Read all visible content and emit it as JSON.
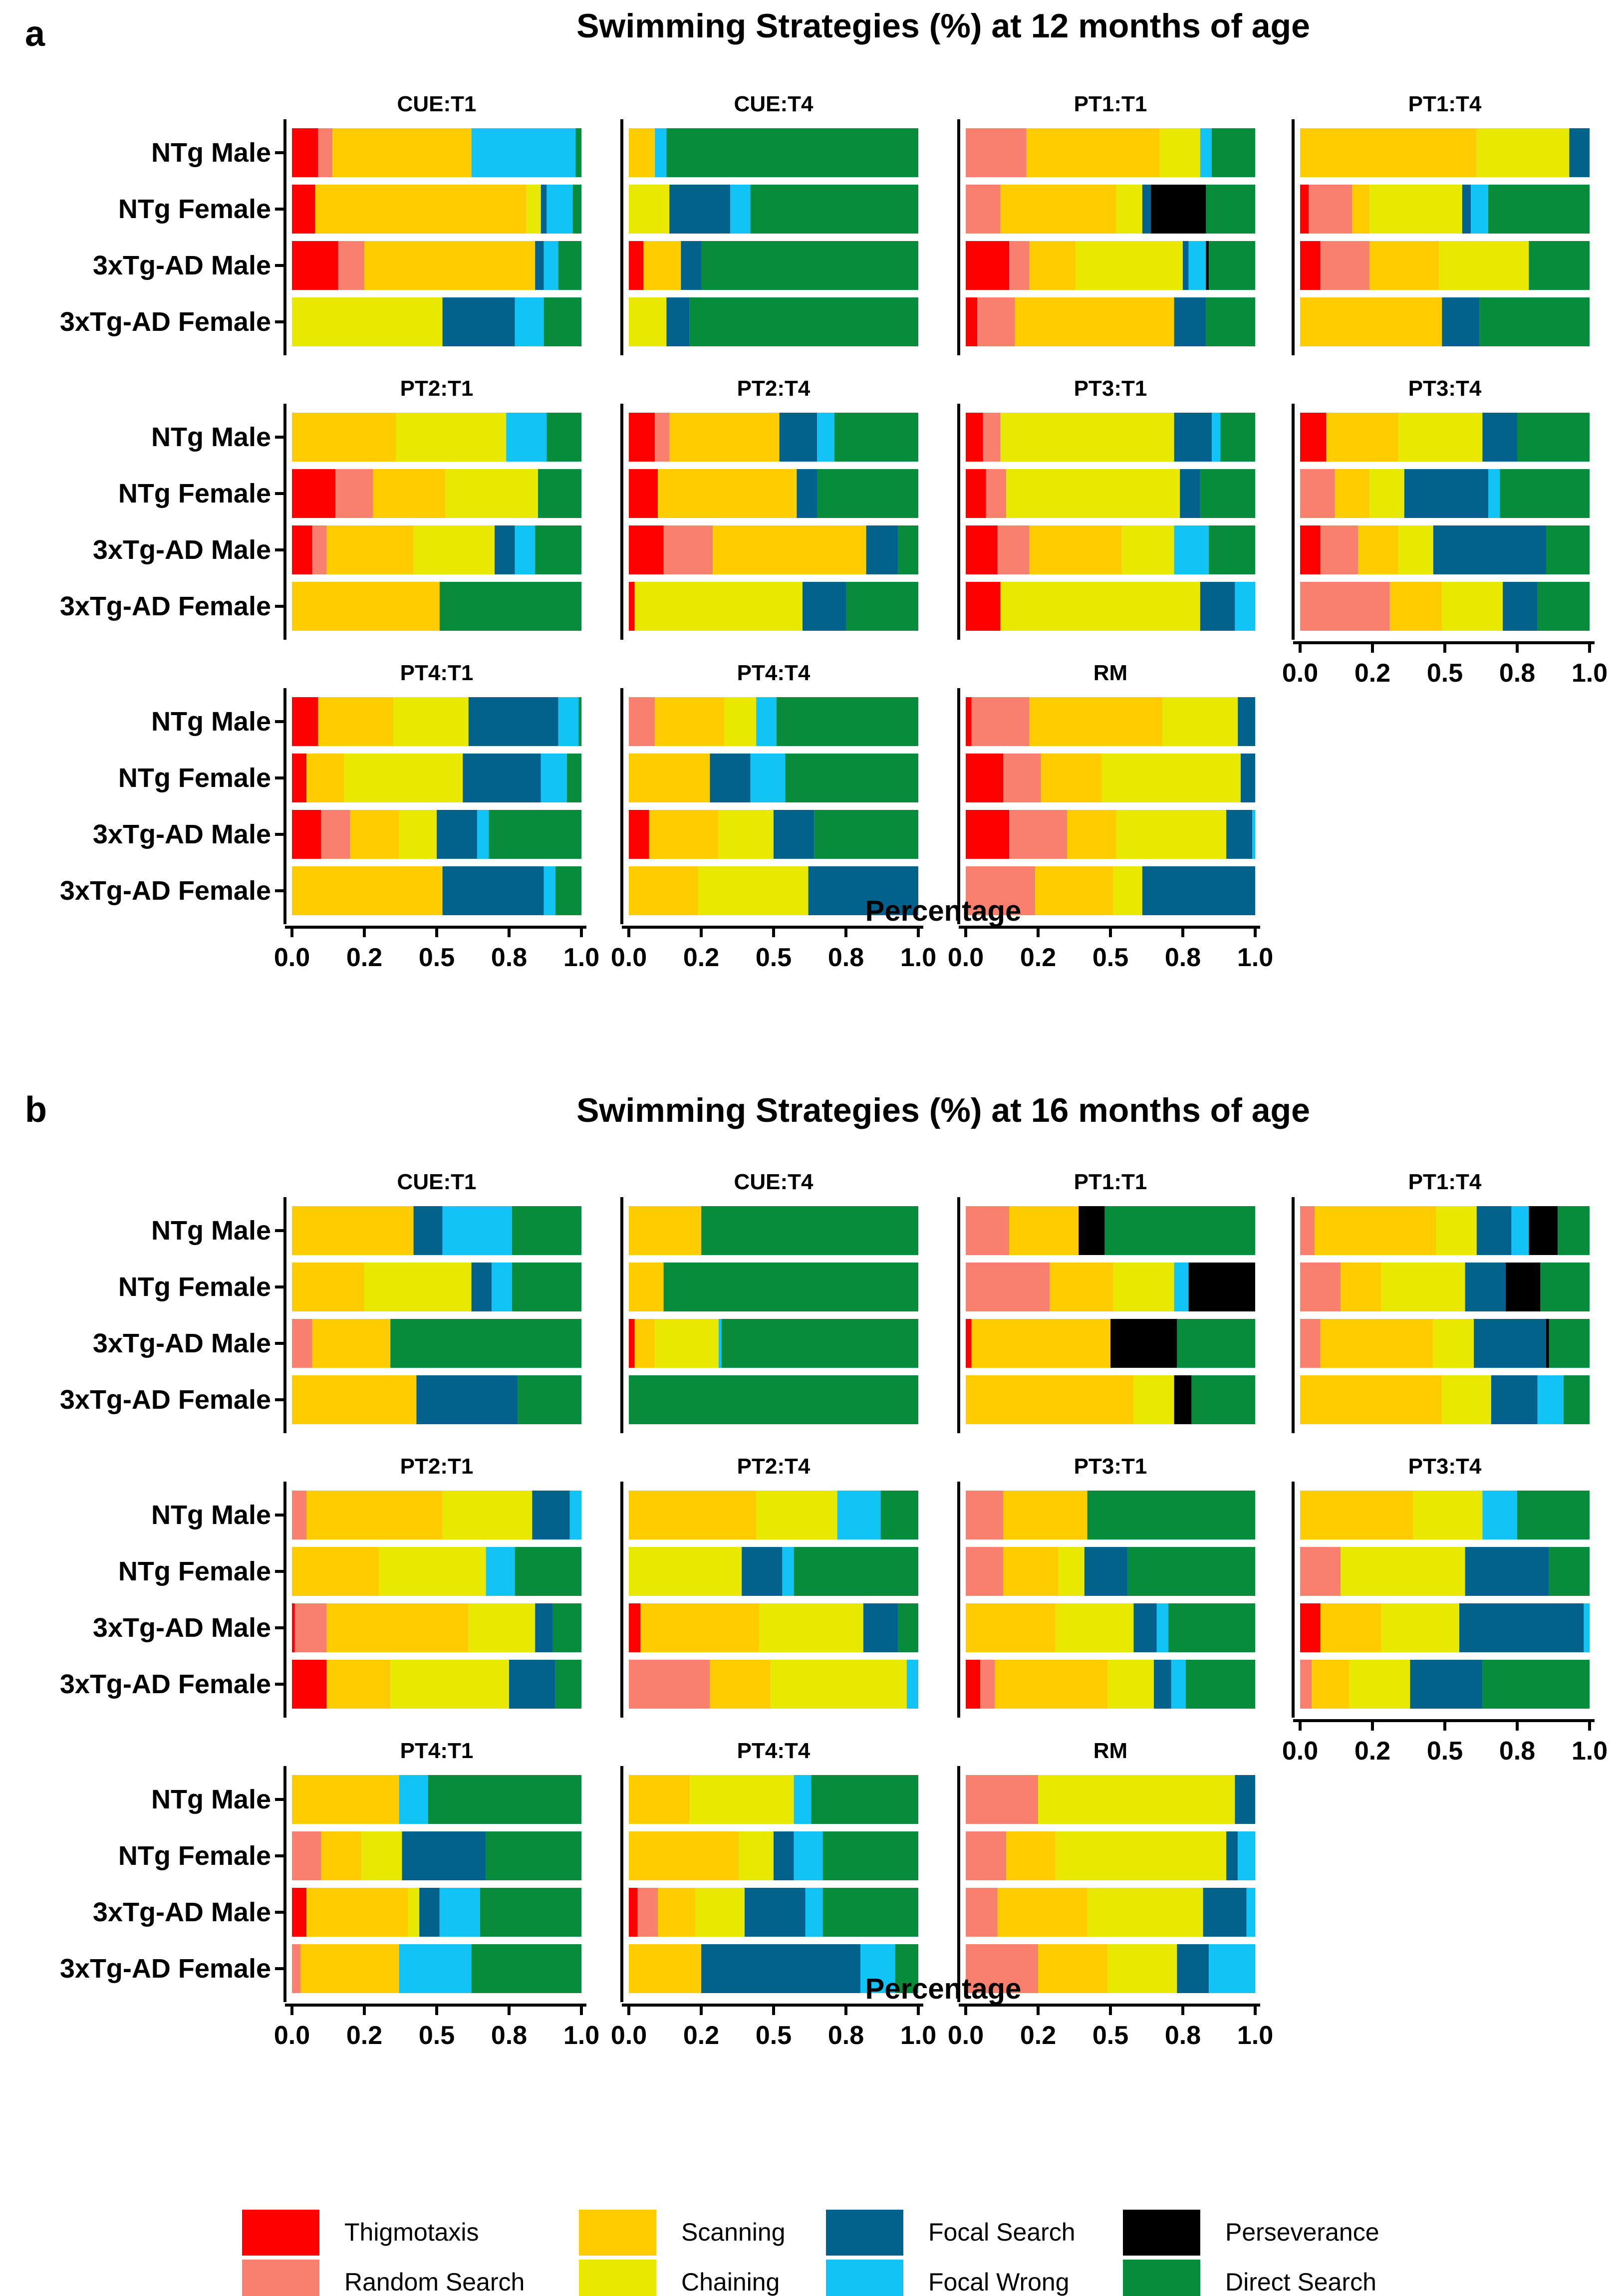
{
  "chart_data": [
    {
      "panel": "a",
      "type": "bar",
      "orientation": "horizontal",
      "stacked": true,
      "title": "Swimming Strategies (%) at 12 months of age",
      "xlabel": "Percentage",
      "xlim": [
        0,
        1
      ],
      "xtick_labels": [
        "0.0",
        "0.2",
        "0.5",
        "0.8",
        "1.0"
      ],
      "groups": [
        "NTg Male",
        "NTg Female",
        "3xTg-AD Male",
        "3xTg-AD Female"
      ],
      "facets": [
        {
          "title": "CUE:T1",
          "bars": [
            [
              0.09,
              0.05,
              0.48,
              0.0,
              0.0,
              0.36,
              0.0,
              0.02
            ],
            [
              0.08,
              0.0,
              0.73,
              0.05,
              0.02,
              0.09,
              0.0,
              0.03
            ],
            [
              0.16,
              0.09,
              0.59,
              0.0,
              0.03,
              0.05,
              0.0,
              0.08
            ],
            [
              0.0,
              0.0,
              0.0,
              0.52,
              0.25,
              0.1,
              0.0,
              0.13
            ]
          ]
        },
        {
          "title": "CUE:T4",
          "bars": [
            [
              0.0,
              0.0,
              0.09,
              0.0,
              0.0,
              0.04,
              0.0,
              0.87
            ],
            [
              0.0,
              0.0,
              0.0,
              0.14,
              0.21,
              0.07,
              0.0,
              0.58
            ],
            [
              0.05,
              0.0,
              0.13,
              0.0,
              0.07,
              0.0,
              0.0,
              0.75
            ],
            [
              0.0,
              0.0,
              0.0,
              0.13,
              0.08,
              0.0,
              0.0,
              0.79
            ]
          ]
        },
        {
          "title": "PT1:T1",
          "bars": [
            [
              0.0,
              0.21,
              0.46,
              0.14,
              0.0,
              0.04,
              0.0,
              0.15
            ],
            [
              0.0,
              0.12,
              0.4,
              0.09,
              0.03,
              0.0,
              0.19,
              0.17
            ],
            [
              0.15,
              0.07,
              0.16,
              0.37,
              0.02,
              0.06,
              0.01,
              0.16
            ],
            [
              0.04,
              0.13,
              0.55,
              0.0,
              0.11,
              0.0,
              0.0,
              0.17
            ]
          ]
        },
        {
          "title": "PT1:T4",
          "bars": [
            [
              0.0,
              0.0,
              0.61,
              0.32,
              0.07,
              0.0,
              0.0,
              0.0
            ],
            [
              0.03,
              0.15,
              0.06,
              0.32,
              0.03,
              0.06,
              0.0,
              0.35
            ],
            [
              0.07,
              0.17,
              0.24,
              0.31,
              0.0,
              0.0,
              0.0,
              0.21
            ],
            [
              0.0,
              0.0,
              0.49,
              0.0,
              0.13,
              0.0,
              0.0,
              0.38
            ]
          ]
        },
        {
          "title": "PT2:T1",
          "bars": [
            [
              0.0,
              0.0,
              0.36,
              0.38,
              0.0,
              0.14,
              0.0,
              0.12
            ],
            [
              0.15,
              0.13,
              0.25,
              0.32,
              0.0,
              0.0,
              0.0,
              0.15
            ],
            [
              0.07,
              0.05,
              0.3,
              0.28,
              0.07,
              0.07,
              0.0,
              0.16
            ],
            [
              0.0,
              0.0,
              0.51,
              0.0,
              0.0,
              0.0,
              0.0,
              0.49
            ]
          ]
        },
        {
          "title": "PT2:T4",
          "bars": [
            [
              0.09,
              0.05,
              0.38,
              0.0,
              0.13,
              0.06,
              0.0,
              0.29
            ],
            [
              0.1,
              0.0,
              0.48,
              0.0,
              0.07,
              0.0,
              0.0,
              0.35
            ],
            [
              0.12,
              0.17,
              0.53,
              0.0,
              0.11,
              0.0,
              0.0,
              0.07
            ],
            [
              0.02,
              0.0,
              0.0,
              0.58,
              0.15,
              0.0,
              0.0,
              0.25
            ]
          ]
        },
        {
          "title": "PT3:T1",
          "bars": [
            [
              0.06,
              0.06,
              0.0,
              0.6,
              0.13,
              0.03,
              0.0,
              0.12
            ],
            [
              0.07,
              0.07,
              0.0,
              0.6,
              0.07,
              0.0,
              0.0,
              0.19
            ],
            [
              0.11,
              0.11,
              0.32,
              0.18,
              0.0,
              0.12,
              0.0,
              0.16
            ],
            [
              0.12,
              0.0,
              0.0,
              0.69,
              0.12,
              0.07,
              0.0,
              0.0
            ]
          ]
        },
        {
          "title": "PT3:T4",
          "bars": [
            [
              0.09,
              0.0,
              0.25,
              0.29,
              0.12,
              0.0,
              0.0,
              0.25
            ],
            [
              0.0,
              0.12,
              0.12,
              0.12,
              0.29,
              0.04,
              0.0,
              0.31
            ],
            [
              0.07,
              0.13,
              0.14,
              0.12,
              0.39,
              0.0,
              0.0,
              0.15
            ],
            [
              0.0,
              0.31,
              0.18,
              0.21,
              0.12,
              0.0,
              0.0,
              0.18
            ]
          ]
        },
        {
          "title": "PT4:T1",
          "bars": [
            [
              0.09,
              0.0,
              0.26,
              0.26,
              0.31,
              0.07,
              0.0,
              0.01
            ],
            [
              0.05,
              0.0,
              0.13,
              0.41,
              0.27,
              0.09,
              0.0,
              0.05
            ],
            [
              0.1,
              0.1,
              0.17,
              0.13,
              0.14,
              0.04,
              0.0,
              0.32
            ],
            [
              0.0,
              0.0,
              0.52,
              0.0,
              0.35,
              0.04,
              0.0,
              0.09
            ]
          ]
        },
        {
          "title": "PT4:T4",
          "bars": [
            [
              0.0,
              0.09,
              0.24,
              0.11,
              0.0,
              0.07,
              0.0,
              0.49
            ],
            [
              0.0,
              0.0,
              0.28,
              0.0,
              0.14,
              0.12,
              0.0,
              0.46
            ],
            [
              0.07,
              0.0,
              0.24,
              0.19,
              0.14,
              0.0,
              0.0,
              0.36
            ],
            [
              0.0,
              0.0,
              0.24,
              0.38,
              0.38,
              0.0,
              0.0,
              0.0
            ]
          ]
        },
        {
          "title": "RM",
          "bars": [
            [
              0.02,
              0.2,
              0.46,
              0.26,
              0.06,
              0.0,
              0.0,
              0.0
            ],
            [
              0.13,
              0.13,
              0.21,
              0.48,
              0.05,
              0.0,
              0.0,
              0.0
            ],
            [
              0.15,
              0.2,
              0.17,
              0.38,
              0.09,
              0.01,
              0.0,
              0.0
            ],
            [
              0.0,
              0.24,
              0.27,
              0.1,
              0.39,
              0.0,
              0.0,
              0.0
            ]
          ]
        }
      ]
    },
    {
      "panel": "b",
      "type": "bar",
      "orientation": "horizontal",
      "stacked": true,
      "title": "Swimming Strategies (%) at 16 months of age",
      "xlabel": "Percentage",
      "xlim": [
        0,
        1
      ],
      "xtick_labels": [
        "0.0",
        "0.2",
        "0.5",
        "0.8",
        "1.0"
      ],
      "groups": [
        "NTg Male",
        "NTg Female",
        "3xTg-AD Male",
        "3xTg-AD Female"
      ],
      "facets": [
        {
          "title": "CUE:T1",
          "bars": [
            [
              0.0,
              0.0,
              0.42,
              0.0,
              0.1,
              0.24,
              0.0,
              0.24
            ],
            [
              0.0,
              0.0,
              0.25,
              0.37,
              0.07,
              0.07,
              0.0,
              0.24
            ],
            [
              0.0,
              0.07,
              0.27,
              0.0,
              0.0,
              0.0,
              0.0,
              0.66
            ],
            [
              0.0,
              0.0,
              0.43,
              0.0,
              0.35,
              0.0,
              0.0,
              0.22
            ]
          ]
        },
        {
          "title": "CUE:T4",
          "bars": [
            [
              0.0,
              0.0,
              0.25,
              0.0,
              0.0,
              0.0,
              0.0,
              0.75
            ],
            [
              0.0,
              0.0,
              0.12,
              0.0,
              0.0,
              0.0,
              0.0,
              0.88
            ],
            [
              0.02,
              0.0,
              0.07,
              0.22,
              0.0,
              0.01,
              0.0,
              0.68
            ],
            [
              0.0,
              0.0,
              0.0,
              0.0,
              0.0,
              0.0,
              0.0,
              1.0
            ]
          ]
        },
        {
          "title": "PT1:T1",
          "bars": [
            [
              0.0,
              0.15,
              0.24,
              0.0,
              0.0,
              0.0,
              0.09,
              0.52
            ],
            [
              0.0,
              0.29,
              0.22,
              0.21,
              0.0,
              0.05,
              0.23,
              0.0
            ],
            [
              0.02,
              0.0,
              0.48,
              0.0,
              0.0,
              0.0,
              0.23,
              0.27
            ],
            [
              0.0,
              0.0,
              0.58,
              0.14,
              0.0,
              0.0,
              0.06,
              0.22
            ]
          ]
        },
        {
          "title": "PT1:T4",
          "bars": [
            [
              0.0,
              0.05,
              0.42,
              0.14,
              0.12,
              0.06,
              0.1,
              0.11
            ],
            [
              0.0,
              0.14,
              0.14,
              0.29,
              0.14,
              0.0,
              0.12,
              0.17
            ],
            [
              0.0,
              0.07,
              0.39,
              0.14,
              0.25,
              0.0,
              0.01,
              0.14
            ],
            [
              0.0,
              0.0,
              0.49,
              0.17,
              0.16,
              0.09,
              0.0,
              0.09
            ]
          ]
        },
        {
          "title": "PT2:T1",
          "bars": [
            [
              0.0,
              0.05,
              0.47,
              0.31,
              0.13,
              0.04,
              0.0,
              0.0
            ],
            [
              0.0,
              0.0,
              0.3,
              0.37,
              0.0,
              0.1,
              0.0,
              0.23
            ],
            [
              0.01,
              0.11,
              0.49,
              0.23,
              0.06,
              0.0,
              0.0,
              0.1
            ],
            [
              0.12,
              0.0,
              0.22,
              0.41,
              0.16,
              0.0,
              0.0,
              0.09
            ]
          ]
        },
        {
          "title": "PT2:T4",
          "bars": [
            [
              0.0,
              0.0,
              0.44,
              0.28,
              0.0,
              0.15,
              0.0,
              0.13
            ],
            [
              0.0,
              0.0,
              0.0,
              0.39,
              0.14,
              0.04,
              0.0,
              0.43
            ],
            [
              0.04,
              0.0,
              0.41,
              0.36,
              0.12,
              0.0,
              0.0,
              0.07
            ],
            [
              0.0,
              0.28,
              0.21,
              0.47,
              0.0,
              0.04,
              0.0,
              0.0
            ]
          ]
        },
        {
          "title": "PT3:T1",
          "bars": [
            [
              0.0,
              0.13,
              0.29,
              0.0,
              0.0,
              0.0,
              0.0,
              0.58
            ],
            [
              0.0,
              0.13,
              0.19,
              0.09,
              0.15,
              0.0,
              0.0,
              0.44
            ],
            [
              0.0,
              0.0,
              0.31,
              0.27,
              0.08,
              0.04,
              0.0,
              0.3
            ],
            [
              0.05,
              0.05,
              0.39,
              0.16,
              0.06,
              0.05,
              0.0,
              0.24
            ]
          ]
        },
        {
          "title": "PT3:T4",
          "bars": [
            [
              0.0,
              0.0,
              0.39,
              0.24,
              0.0,
              0.12,
              0.0,
              0.25
            ],
            [
              0.0,
              0.14,
              0.0,
              0.43,
              0.29,
              0.0,
              0.0,
              0.14
            ],
            [
              0.07,
              0.0,
              0.21,
              0.27,
              0.43,
              0.02,
              0.0,
              0.0
            ],
            [
              0.0,
              0.04,
              0.13,
              0.21,
              0.25,
              0.0,
              0.0,
              0.37
            ]
          ]
        },
        {
          "title": "PT4:T1",
          "bars": [
            [
              0.0,
              0.0,
              0.37,
              0.0,
              0.0,
              0.1,
              0.0,
              0.53
            ],
            [
              0.0,
              0.1,
              0.14,
              0.14,
              0.29,
              0.0,
              0.0,
              0.33
            ],
            [
              0.05,
              0.0,
              0.35,
              0.04,
              0.07,
              0.14,
              0.0,
              0.35
            ],
            [
              0.0,
              0.03,
              0.34,
              0.0,
              0.0,
              0.25,
              0.0,
              0.38
            ]
          ]
        },
        {
          "title": "PT4:T4",
          "bars": [
            [
              0.0,
              0.0,
              0.21,
              0.36,
              0.0,
              0.06,
              0.0,
              0.37
            ],
            [
              0.0,
              0.0,
              0.38,
              0.12,
              0.07,
              0.1,
              0.0,
              0.33
            ],
            [
              0.03,
              0.07,
              0.13,
              0.17,
              0.21,
              0.06,
              0.0,
              0.33
            ],
            [
              0.0,
              0.0,
              0.25,
              0.0,
              0.55,
              0.12,
              0.0,
              0.08
            ]
          ]
        },
        {
          "title": "RM",
          "bars": [
            [
              0.0,
              0.25,
              0.0,
              0.68,
              0.07,
              0.0,
              0.0,
              0.0
            ],
            [
              0.0,
              0.14,
              0.17,
              0.59,
              0.04,
              0.06,
              0.0,
              0.0
            ],
            [
              0.0,
              0.11,
              0.31,
              0.4,
              0.15,
              0.03,
              0.0,
              0.0
            ],
            [
              0.0,
              0.25,
              0.24,
              0.24,
              0.11,
              0.16,
              0.0,
              0.0
            ]
          ]
        }
      ]
    }
  ],
  "legend": {
    "placement": "bottom",
    "items": [
      {
        "label": "Thigmotaxis",
        "color": "#ff0000"
      },
      {
        "label": "Random Search",
        "color": "#f9806e"
      },
      {
        "label": "Scanning",
        "color": "#ffcc00"
      },
      {
        "label": "Chaining",
        "color": "#e8e800"
      },
      {
        "label": "Focal Search",
        "color": "#03628c"
      },
      {
        "label": "Focal Wrong",
        "color": "#12c4f5"
      },
      {
        "label": "Perseverance",
        "color": "#000000"
      },
      {
        "label": "Direct Search",
        "color": "#078c3c"
      }
    ]
  }
}
